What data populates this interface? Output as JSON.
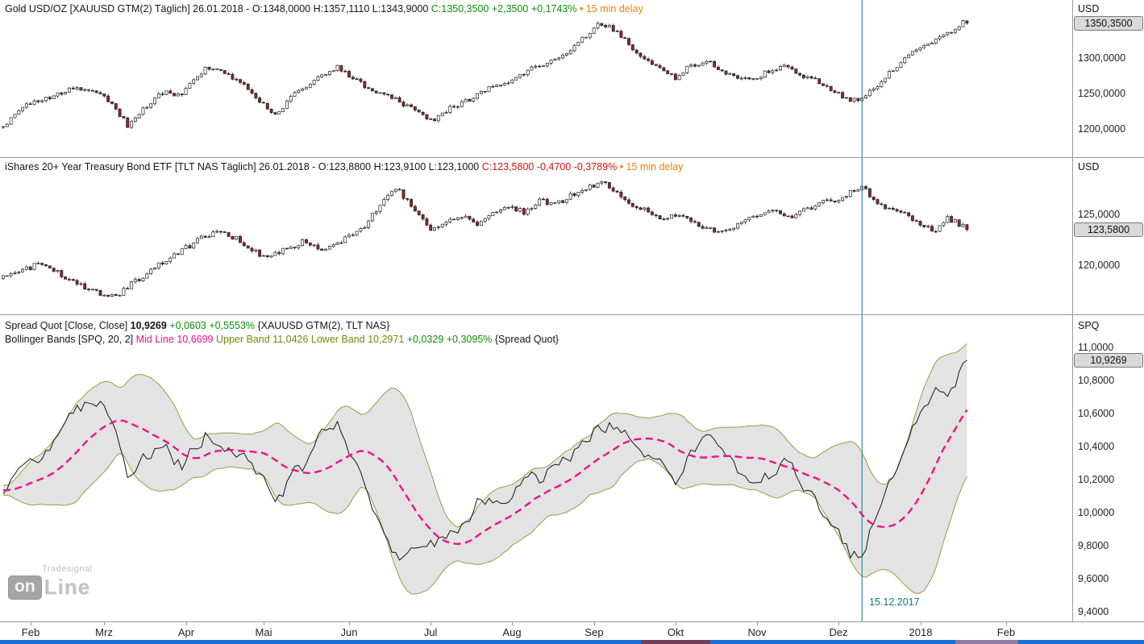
{
  "panels": {
    "gold": {
      "header": {
        "instrument": "Gold USD/OZ [XAUUSD GTM(2) Täglich] 26.01.2018 - ",
        "ohl": "O:1348,0000 H:1357,1110 L:1343,9000 ",
        "close": "C:1350,3500 +2,3500 +0,1743%",
        "delay_bullet": " • ",
        "delay": "15 min delay"
      },
      "axis_unit": "USD",
      "price_badge": "1350,3500",
      "badge_value": 1350.35,
      "ticks": [
        {
          "value": 1300,
          "label": "1300,0000"
        },
        {
          "value": 1250,
          "label": "1250,0000"
        },
        {
          "value": 1200,
          "label": "1200,0000"
        }
      ]
    },
    "tlt": {
      "header": {
        "instrument": "iShares 20+ Year Treasury Bond ETF [TLT NAS Täglich] 26.01.2018 - ",
        "ohl": "O:123,8800 H:123,9100 L:123,1000 ",
        "close": "C:123,5800 -0,4700 -0,3789%",
        "delay_bullet": " • ",
        "delay": "15 min delay"
      },
      "axis_unit": "USD",
      "price_badge": "123,5800",
      "badge_value": 123.58,
      "ticks": [
        {
          "value": 125,
          "label": "125,0000"
        },
        {
          "value": 120,
          "label": "120,0000"
        }
      ]
    },
    "spread": {
      "header_line1": {
        "name": "Spread Quot [Close, Close] ",
        "value": "10,9269 ",
        "change": "+0,0603 +0,5553% ",
        "symbols": "{XAUUSD GTM(2), TLT NAS}"
      },
      "header_line2": {
        "name": "Bollinger Bands [SPQ, 20, 2] ",
        "mid": "Mid Line 10,6699 ",
        "bands": "Upper Band 11,0426 Lower Band 10,2971 ",
        "band_change": "+0,0329 +0,3095% ",
        "of": "{Spread Quot}"
      },
      "axis_unit": "SPQ",
      "price_badge": "10,9269",
      "badge_value": 10.9269,
      "ticks": [
        {
          "value": 11.0,
          "label": "11,0000"
        },
        {
          "value": 10.8,
          "label": "10,8000"
        },
        {
          "value": 10.6,
          "label": "10,6000"
        },
        {
          "value": 10.4,
          "label": "10,4000"
        },
        {
          "value": 10.2,
          "label": "10,2000"
        },
        {
          "value": 10.0,
          "label": "10,0000"
        },
        {
          "value": 9.8,
          "label": "9,8000"
        },
        {
          "value": 9.6,
          "label": "9,6000"
        },
        {
          "value": 9.4,
          "label": "9,4000"
        }
      ]
    }
  },
  "xaxis": {
    "labels": [
      {
        "label": "Feb",
        "day": 7
      },
      {
        "label": "Mrz",
        "day": 26
      },
      {
        "label": "Apr",
        "day": 47
      },
      {
        "label": "Mai",
        "day": 67
      },
      {
        "label": "Jun",
        "day": 89
      },
      {
        "label": "Jul",
        "day": 110
      },
      {
        "label": "Aug",
        "day": 131
      },
      {
        "label": "Sep",
        "day": 152
      },
      {
        "label": "Okt",
        "day": 173
      },
      {
        "label": "Nov",
        "day": 194
      },
      {
        "label": "Dez",
        "day": 215
      },
      {
        "label": "2018",
        "day": 236
      },
      {
        "label": "Feb",
        "day": 258
      }
    ]
  },
  "crosshair": {
    "day": 221,
    "label": "15.12.2017"
  },
  "watermark": {
    "brand": "Tradesignal",
    "logo_left": "on",
    "logo_right": "Line"
  },
  "colors": {
    "up_text": "#0b8f0b",
    "down_text": "#d01414",
    "delay": "#e8820a",
    "mid_line": "#ee1186",
    "band_edge": "#9b9b40",
    "crosshair": "#0f7b86",
    "down_candle": "#8f2727",
    "up_candle": "#ffffff"
  },
  "chart_data": [
    {
      "type": "candlestick",
      "name": "Gold USD/OZ (XAUUSD GTM(2)), daily",
      "unit": "USD",
      "ylim": [
        1161,
        1383
      ],
      "visible_ticks": [
        1200,
        1250,
        1300
      ],
      "last_ohlc": {
        "open": 1348.0,
        "high": 1357.111,
        "low": 1343.9,
        "close": 1350.35,
        "change": 2.35,
        "change_pct": 0.1743
      },
      "anchor_points_day_value": [
        [
          0,
          1205
        ],
        [
          5,
          1232
        ],
        [
          12,
          1246
        ],
        [
          19,
          1260
        ],
        [
          24,
          1254
        ],
        [
          28,
          1236
        ],
        [
          32,
          1206
        ],
        [
          36,
          1230
        ],
        [
          41,
          1252
        ],
        [
          46,
          1250
        ],
        [
          52,
          1288
        ],
        [
          57,
          1281
        ],
        [
          62,
          1262
        ],
        [
          67,
          1236
        ],
        [
          70,
          1221
        ],
        [
          75,
          1250
        ],
        [
          81,
          1272
        ],
        [
          86,
          1290
        ],
        [
          91,
          1269
        ],
        [
          96,
          1251
        ],
        [
          101,
          1243
        ],
        [
          106,
          1226
        ],
        [
          110,
          1212
        ],
        [
          115,
          1231
        ],
        [
          120,
          1243
        ],
        [
          125,
          1258
        ],
        [
          130,
          1263
        ],
        [
          135,
          1284
        ],
        [
          140,
          1292
        ],
        [
          145,
          1310
        ],
        [
          150,
          1332
        ],
        [
          153,
          1348
        ],
        [
          156,
          1346
        ],
        [
          159,
          1333
        ],
        [
          162,
          1312
        ],
        [
          166,
          1298
        ],
        [
          170,
          1284
        ],
        [
          173,
          1273
        ],
        [
          177,
          1291
        ],
        [
          181,
          1297
        ],
        [
          185,
          1282
        ],
        [
          189,
          1275
        ],
        [
          193,
          1271
        ],
        [
          197,
          1283
        ],
        [
          201,
          1288
        ],
        [
          205,
          1278
        ],
        [
          209,
          1271
        ],
        [
          213,
          1256
        ],
        [
          217,
          1244
        ],
        [
          220,
          1241
        ],
        [
          223,
          1255
        ],
        [
          226,
          1268
        ],
        [
          230,
          1291
        ],
        [
          233,
          1305
        ],
        [
          236,
          1313
        ],
        [
          239,
          1321
        ],
        [
          242,
          1333
        ],
        [
          245,
          1341
        ],
        [
          247,
          1352
        ],
        [
          248,
          1350.35
        ]
      ]
    },
    {
      "type": "candlestick",
      "name": "iShares 20+ Year Treasury Bond ETF (TLT NAS), daily",
      "unit": "USD",
      "ylim": [
        115.2,
        130.6
      ],
      "visible_ticks": [
        120,
        125
      ],
      "last_ohlc": {
        "open": 123.88,
        "high": 123.91,
        "low": 123.1,
        "close": 123.58,
        "change": -0.47,
        "change_pct": -0.3789
      },
      "anchor_points_day_value": [
        [
          0,
          118.8
        ],
        [
          5,
          119.6
        ],
        [
          10,
          120.3
        ],
        [
          15,
          119.1
        ],
        [
          20,
          118.0
        ],
        [
          25,
          117.2
        ],
        [
          29,
          117.0
        ],
        [
          33,
          118.2
        ],
        [
          38,
          119.6
        ],
        [
          43,
          120.8
        ],
        [
          48,
          122.0
        ],
        [
          55,
          123.6
        ],
        [
          60,
          122.7
        ],
        [
          64,
          121.7
        ],
        [
          67,
          120.8
        ],
        [
          72,
          121.5
        ],
        [
          77,
          122.4
        ],
        [
          82,
          121.6
        ],
        [
          87,
          122.5
        ],
        [
          92,
          123.5
        ],
        [
          97,
          125.9
        ],
        [
          101,
          127.7
        ],
        [
          105,
          126.0
        ],
        [
          110,
          123.4
        ],
        [
          114,
          124.3
        ],
        [
          118,
          125.0
        ],
        [
          122,
          124.2
        ],
        [
          126,
          125.2
        ],
        [
          130,
          125.8
        ],
        [
          134,
          125.3
        ],
        [
          138,
          126.5
        ],
        [
          142,
          126.0
        ],
        [
          146,
          126.9
        ],
        [
          150,
          127.5
        ],
        [
          154,
          128.5
        ],
        [
          158,
          127.1
        ],
        [
          162,
          126.0
        ],
        [
          166,
          125.3
        ],
        [
          170,
          124.6
        ],
        [
          174,
          125.1
        ],
        [
          178,
          124.2
        ],
        [
          182,
          123.6
        ],
        [
          186,
          123.3
        ],
        [
          190,
          124.2
        ],
        [
          194,
          124.9
        ],
        [
          198,
          125.4
        ],
        [
          202,
          124.8
        ],
        [
          206,
          125.5
        ],
        [
          210,
          126.1
        ],
        [
          214,
          126.5
        ],
        [
          218,
          127.2
        ],
        [
          221,
          127.9
        ],
        [
          224,
          126.5
        ],
        [
          228,
          125.5
        ],
        [
          232,
          125.0
        ],
        [
          236,
          124.1
        ],
        [
          240,
          123.3
        ],
        [
          243,
          124.7
        ],
        [
          246,
          124.1
        ],
        [
          248,
          123.58
        ]
      ]
    },
    {
      "type": "line",
      "name": "Spread Quot [Close, Close] {XAUUSD GTM(2), TLT NAS}",
      "unit": "SPQ",
      "derivation": "gold_close / tlt_close",
      "ylim": [
        9.35,
        11.2
      ],
      "visible_ticks": [
        9.4,
        9.6,
        9.8,
        10.0,
        10.2,
        10.4,
        10.6,
        10.8,
        11.0
      ],
      "last_value": 10.9269,
      "change": 0.0603,
      "change_pct": 0.5553,
      "bollinger": {
        "period": 20,
        "stddev_mult": 2,
        "mid": 10.6699,
        "upper": 11.0426,
        "lower": 10.2971,
        "band_change": 0.0329,
        "band_change_pct": 0.3095
      },
      "marked_date": {
        "label": "15.12.2017",
        "day": 221
      }
    }
  ]
}
